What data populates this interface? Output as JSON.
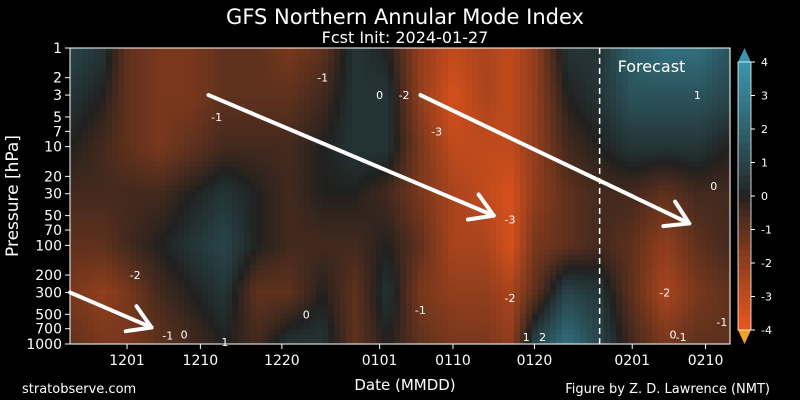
{
  "chart_data": {
    "type": "heatmap",
    "title": "GFS Northern Annular Mode Index",
    "subtitle": "Fcst Init: 2024-01-27",
    "xlabel": "Date (MMDD)",
    "ylabel": "Pressure [hPa]",
    "x_ticks": [
      "1201",
      "1210",
      "1220",
      "0101",
      "0110",
      "0120",
      "0201",
      "0210"
    ],
    "x_tick_days": [
      0,
      9,
      19,
      31,
      40,
      50,
      62,
      71
    ],
    "xlim_days": [
      -7,
      74
    ],
    "y_ticks": [
      1,
      2,
      3,
      5,
      7,
      10,
      20,
      30,
      50,
      70,
      100,
      200,
      300,
      500,
      700,
      1000
    ],
    "ylim": [
      1000,
      1
    ],
    "y_scale": "log",
    "forecast_label": "Forecast",
    "forecast_start_day": 58,
    "colorbar": {
      "ticks": [
        4,
        3,
        2,
        1,
        0,
        -1,
        -2,
        -3,
        -4
      ],
      "range": [
        -4,
        4
      ],
      "positive_color": "#3a8fa6",
      "negative_color": "#e8561a"
    },
    "grid": false,
    "footer_left": "stratobserve.com",
    "footer_right": "Figure by Z. D. Lawrence (NMT)",
    "contour_labels": [
      {
        "text": "-1",
        "day": 11,
        "p": 5
      },
      {
        "text": "-1",
        "day": 24,
        "p": 2
      },
      {
        "text": "0",
        "day": 31,
        "p": 3
      },
      {
        "text": "-2",
        "day": 34,
        "p": 3
      },
      {
        "text": "-3",
        "day": 38,
        "p": 7
      },
      {
        "text": "-3",
        "day": 47,
        "p": 55
      },
      {
        "text": "-2",
        "day": 47,
        "p": 340
      },
      {
        "text": "-2",
        "day": 1,
        "p": 200
      },
      {
        "text": "-1",
        "day": 5,
        "p": 820
      },
      {
        "text": "0",
        "day": 7,
        "p": 800
      },
      {
        "text": "1",
        "day": 12,
        "p": 950
      },
      {
        "text": "0",
        "day": 22,
        "p": 500
      },
      {
        "text": "-1",
        "day": 36,
        "p": 450
      },
      {
        "text": "1",
        "day": 49,
        "p": 850
      },
      {
        "text": "2",
        "day": 51,
        "p": 850
      },
      {
        "text": "-2",
        "day": 66,
        "p": 300
      },
      {
        "text": "0",
        "day": 67,
        "p": 800
      },
      {
        "text": "-1",
        "day": 68,
        "p": 850
      },
      {
        "text": "1",
        "day": 70,
        "p": 3
      },
      {
        "text": "0",
        "day": 72,
        "p": 25
      },
      {
        "text": "-1",
        "day": 73,
        "p": 600
      }
    ],
    "field": {
      "days": [
        -7,
        -3,
        0,
        4,
        8,
        12,
        16,
        20,
        24,
        28,
        32,
        36,
        40,
        44,
        47,
        50,
        54,
        58,
        62,
        66,
        70,
        74
      ],
      "levels": [
        1,
        3,
        10,
        30,
        100,
        300,
        1000
      ],
      "values": [
        [
          1.0,
          0.5,
          -1.0,
          -1.5,
          -1.5,
          -1.0,
          -1.0,
          -1.5,
          -1.0,
          0.5,
          0.0,
          -2.0,
          -3.0,
          -2.5,
          -3.0,
          -2.0,
          0.5,
          0.5,
          2.0,
          2.5,
          2.5,
          1.5
        ],
        [
          0.5,
          0.0,
          -1.0,
          -1.5,
          -1.5,
          -1.0,
          -1.0,
          -1.0,
          -0.5,
          0.5,
          0.5,
          -2.0,
          -3.5,
          -2.5,
          -3.0,
          -2.0,
          0.0,
          0.5,
          1.5,
          1.5,
          1.5,
          1.0
        ],
        [
          0.0,
          -0.5,
          -1.0,
          -1.5,
          -1.0,
          -0.5,
          -0.5,
          -0.5,
          0.0,
          0.5,
          0.5,
          -1.5,
          -3.0,
          -3.0,
          -3.0,
          -2.0,
          -0.5,
          0.0,
          0.5,
          0.5,
          0.5,
          0.0
        ],
        [
          -0.5,
          -0.5,
          -0.5,
          -0.5,
          0.0,
          0.5,
          0.0,
          -0.5,
          0.0,
          0.0,
          -0.5,
          -1.5,
          -2.5,
          -3.0,
          -3.5,
          -2.0,
          -1.0,
          -0.5,
          -0.5,
          -1.0,
          -0.5,
          -0.5
        ],
        [
          -1.0,
          -1.0,
          -0.5,
          0.0,
          0.5,
          1.0,
          0.0,
          -0.5,
          -0.5,
          -0.5,
          0.0,
          -1.0,
          -2.5,
          -2.5,
          -3.5,
          -1.5,
          -1.0,
          -0.5,
          -1.0,
          -2.0,
          -1.0,
          -0.5
        ],
        [
          -1.5,
          -2.0,
          -1.5,
          -0.5,
          0.0,
          0.5,
          -1.0,
          -1.0,
          0.0,
          -1.0,
          0.5,
          -1.5,
          -2.0,
          -2.0,
          -2.5,
          -1.0,
          1.0,
          0.5,
          -1.0,
          -2.5,
          -1.5,
          -1.0
        ],
        [
          -1.0,
          -1.5,
          -1.5,
          -1.0,
          -0.5,
          0.0,
          -0.5,
          0.5,
          0.5,
          -1.0,
          0.0,
          -1.0,
          -1.5,
          -1.5,
          -2.0,
          1.0,
          2.5,
          1.0,
          -0.5,
          -1.5,
          -1.0,
          -1.0
        ]
      ]
    },
    "annotation_arrows": [
      {
        "from": {
          "day": 10,
          "p": 3
        },
        "to": {
          "day": 45,
          "p": 50
        }
      },
      {
        "from": {
          "day": 36,
          "p": 3
        },
        "to": {
          "day": 69,
          "p": 60
        }
      },
      {
        "from": {
          "day": -7,
          "p": 300
        },
        "to": {
          "day": 3,
          "p": 680
        }
      }
    ]
  }
}
